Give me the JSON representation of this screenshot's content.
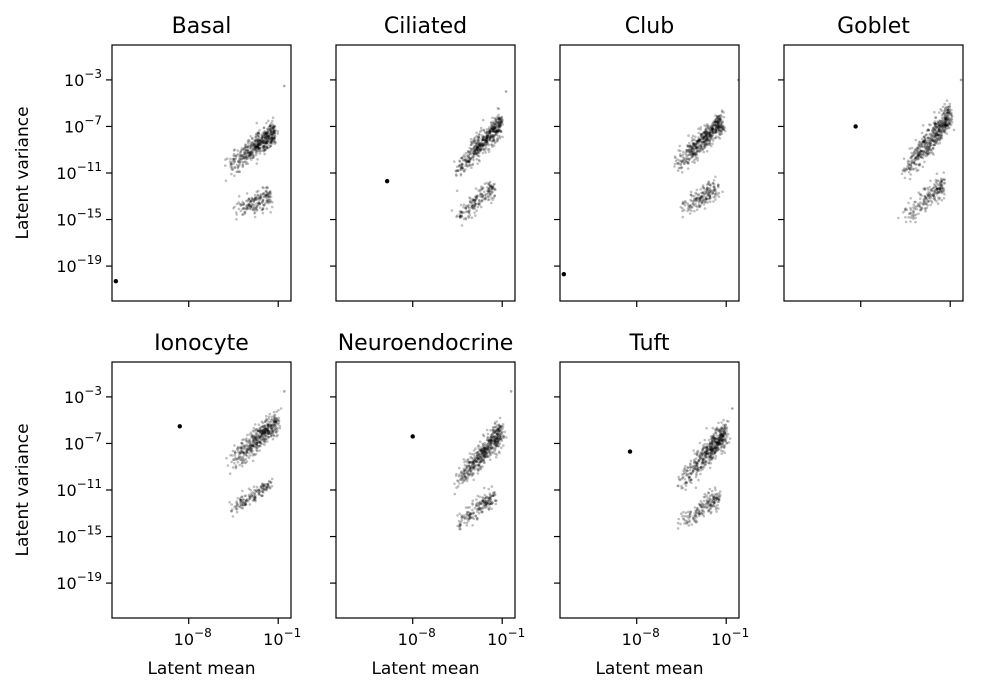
{
  "chart_data": {
    "type": "scatter",
    "x_scale": "log",
    "y_scale": "log",
    "xlim": [
      1e-14,
      1
    ],
    "ylim": [
      1e-22,
      1
    ],
    "xticks": [
      {
        "base": "10",
        "exp": "−8",
        "value": 1e-08
      },
      {
        "base": "10",
        "exp": "−1",
        "value": 0.1
      }
    ],
    "yticks": [
      {
        "base": "10",
        "exp": "−3",
        "value": 0.001
      },
      {
        "base": "10",
        "exp": "−7",
        "value": 1e-07
      },
      {
        "base": "10",
        "exp": "−11",
        "value": 1e-11
      },
      {
        "base": "10",
        "exp": "−15",
        "value": 1e-15
      },
      {
        "base": "10",
        "exp": "−19",
        "value": 1e-19
      }
    ],
    "xlabel": "Latent mean",
    "ylabel": "Latent variance",
    "point_color": "#000000",
    "grid": false,
    "panels": [
      {
        "title": "Basal",
        "outlier": {
          "x": 2e-14,
          "y": 5e-21
        },
        "bands": [
          {
            "x": [
              1e-05,
              0.05
            ],
            "y": [
              3e-11,
              3e-08
            ],
            "spread": 1.0,
            "n": 500
          },
          {
            "x": [
              3e-05,
              0.02
            ],
            "y": [
              5e-15,
              1e-13
            ],
            "spread": 0.9,
            "n": 180
          }
        ],
        "max_point": {
          "x": 0.3,
          "y": 0.0003
        }
      },
      {
        "title": "Ciliated",
        "outlier": {
          "x": 1e-10,
          "y": 2e-12
        },
        "bands": [
          {
            "x": [
              2e-05,
              0.08
            ],
            "y": [
              1e-11,
              2e-07
            ],
            "spread": 1.0,
            "n": 500
          },
          {
            "x": [
              2e-05,
              0.02
            ],
            "y": [
              1e-15,
              5e-13
            ],
            "spread": 0.8,
            "n": 180
          }
        ],
        "max_point": {
          "x": 0.2,
          "y": 0.0001
        }
      },
      {
        "title": "Club",
        "outlier": {
          "x": 2e-14,
          "y": 2e-20
        },
        "bands": [
          {
            "x": [
              1e-05,
              0.05
            ],
            "y": [
              3e-11,
              3e-07
            ],
            "spread": 1.0,
            "n": 500
          },
          {
            "x": [
              2e-05,
              0.02
            ],
            "y": [
              5e-15,
              5e-13
            ],
            "spread": 0.9,
            "n": 180
          }
        ],
        "max_point": {
          "x": 0.9,
          "y": 0.001
        }
      },
      {
        "title": "Goblet",
        "outlier": {
          "x": 4e-09,
          "y": 1e-07
        },
        "bands": [
          {
            "x": [
              2e-05,
              0.1
            ],
            "y": [
              1e-11,
              1e-06
            ],
            "spread": 1.1,
            "n": 520
          },
          {
            "x": [
              2e-05,
              0.03
            ],
            "y": [
              1e-15,
              1e-12
            ],
            "spread": 0.9,
            "n": 200
          }
        ],
        "max_point": {
          "x": 0.7,
          "y": 0.001
        }
      },
      {
        "title": "Ionocyte",
        "outlier": {
          "x": 2e-09,
          "y": 3e-06
        },
        "bands": [
          {
            "x": [
              1e-05,
              0.1
            ],
            "y": [
              1e-09,
              1e-05
            ],
            "spread": 1.0,
            "n": 450
          },
          {
            "x": [
              1e-05,
              0.02
            ],
            "y": [
              1e-13,
              3e-11
            ],
            "spread": 0.6,
            "n": 150
          }
        ],
        "max_point": {
          "x": 0.3,
          "y": 0.003
        }
      },
      {
        "title": "Neuroendocrine",
        "outlier": {
          "x": 1e-08,
          "y": 4e-07
        },
        "bands": [
          {
            "x": [
              2e-05,
              0.1
            ],
            "y": [
              3e-11,
              1e-06
            ],
            "spread": 1.1,
            "n": 500
          },
          {
            "x": [
              2e-05,
              0.03
            ],
            "y": [
              1e-14,
              3e-12
            ],
            "spread": 0.8,
            "n": 180
          }
        ],
        "max_point": {
          "x": 0.5,
          "y": 0.003
        }
      },
      {
        "title": "Tuft",
        "outlier": {
          "x": 3e-09,
          "y": 2e-08
        },
        "bands": [
          {
            "x": [
              2e-05,
              0.1
            ],
            "y": [
              3e-11,
              1e-06
            ],
            "spread": 1.1,
            "n": 500
          },
          {
            "x": [
              2e-05,
              0.03
            ],
            "y": [
              1e-14,
              3e-12
            ],
            "spread": 0.8,
            "n": 180
          }
        ],
        "max_point": {
          "x": 0.3,
          "y": 0.0001
        }
      }
    ]
  }
}
